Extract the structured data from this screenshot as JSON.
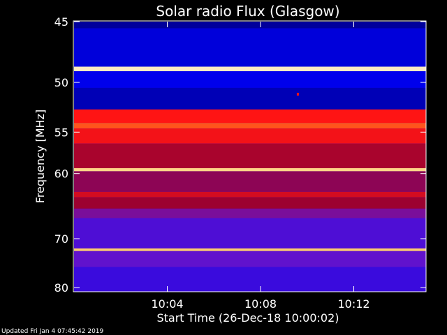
{
  "footer": {
    "updated": "Updated Fri Jan  4 07:45:42 2019"
  },
  "chart_data": {
    "type": "heatmap",
    "title": "Solar radio Flux (Glasgow)",
    "xlabel": "Start Time (26-Dec-18 10:00:02)",
    "ylabel": "Frequency [MHz]",
    "x_ticks": [
      "10:04",
      "10:08",
      "10:12"
    ],
    "x_tick_minutes": [
      4,
      8,
      12
    ],
    "x_range_minutes": [
      0,
      15.1
    ],
    "y_ticks": [
      45,
      50,
      55,
      60,
      70,
      80
    ],
    "ylim": [
      45,
      81
    ],
    "y_scale": "reciprocal",
    "colormap": "blue-red-yellow-white",
    "intensity_scale": [
      0,
      1
    ],
    "frequency_bands": [
      {
        "from": 45.0,
        "to": 45.5,
        "level": 0.05
      },
      {
        "from": 45.5,
        "to": 48.6,
        "level": 0.12
      },
      {
        "from": 48.6,
        "to": 49.0,
        "level": 0.95
      },
      {
        "from": 49.0,
        "to": 50.5,
        "level": 0.14
      },
      {
        "from": 50.5,
        "to": 52.6,
        "level": 0.08
      },
      {
        "from": 52.6,
        "to": 54.0,
        "level": 0.62
      },
      {
        "from": 54.0,
        "to": 54.6,
        "level": 0.7
      },
      {
        "from": 54.6,
        "to": 56.3,
        "level": 0.6
      },
      {
        "from": 56.3,
        "to": 59.3,
        "level": 0.48
      },
      {
        "from": 59.3,
        "to": 59.7,
        "level": 0.9
      },
      {
        "from": 59.7,
        "to": 62.5,
        "level": 0.42
      },
      {
        "from": 62.5,
        "to": 63.3,
        "level": 0.55
      },
      {
        "from": 63.3,
        "to": 65.0,
        "level": 0.46
      },
      {
        "from": 65.0,
        "to": 66.5,
        "level": 0.36
      },
      {
        "from": 66.5,
        "to": 71.8,
        "level": 0.27
      },
      {
        "from": 71.8,
        "to": 72.3,
        "level": 0.88
      },
      {
        "from": 72.3,
        "to": 75.5,
        "level": 0.3
      },
      {
        "from": 75.5,
        "to": 81.0,
        "level": 0.24
      }
    ],
    "points": [
      {
        "minute": 9.6,
        "frequency": 51.1,
        "level": 0.6
      }
    ]
  }
}
